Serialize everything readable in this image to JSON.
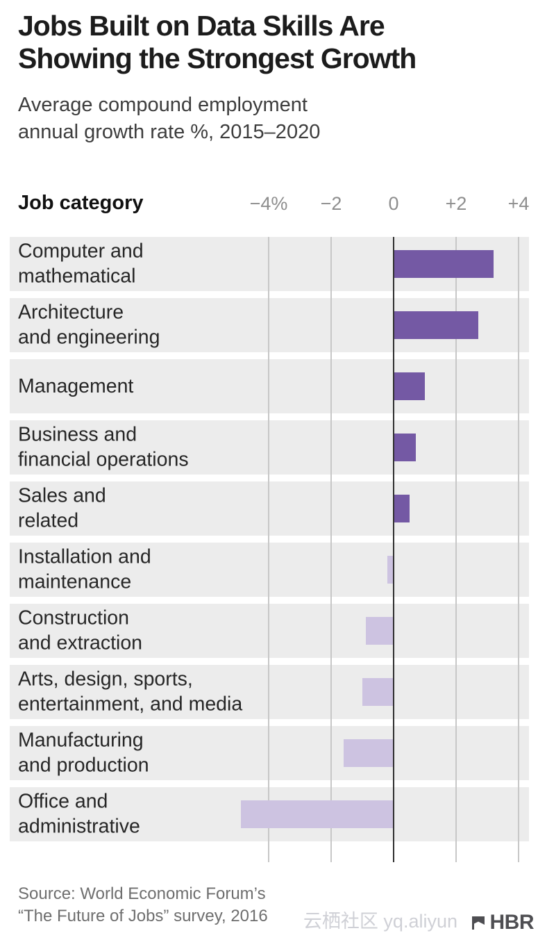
{
  "title_lines": [
    "Jobs Built on Data Skills Are",
    "Showing the Strongest Growth"
  ],
  "subtitle_lines": [
    "Average compound employment",
    "annual growth rate %, 2015–2020"
  ],
  "chart_data": {
    "type": "bar",
    "orientation": "horizontal",
    "title": "Jobs Built on Data Skills Are Showing the Strongest Growth",
    "subtitle": "Average compound employment annual growth rate %, 2015–2020",
    "column_header": "Job category",
    "x_axis": {
      "ticks": [
        {
          "label": "−4%",
          "value": -4
        },
        {
          "label": "−2",
          "value": -2
        },
        {
          "label": "0",
          "value": 0
        },
        {
          "label": "+2",
          "value": 2
        },
        {
          "label": "+4",
          "value": 4
        }
      ],
      "xlim": [
        -5.3,
        4.3
      ],
      "unit": "percent"
    },
    "grid": true,
    "legend": false,
    "categories": [
      "Computer and mathematical",
      "Architecture and engineering",
      "Management",
      "Business and financial operations",
      "Sales and related",
      "Installation and maintenance",
      "Construction and extraction",
      "Arts, design, sports, entertainment, and media",
      "Manufacturing and production",
      "Office and administrative"
    ],
    "category_lines": [
      [
        "Computer and",
        "mathematical"
      ],
      [
        "Architecture",
        "and engineering"
      ],
      [
        "Management"
      ],
      [
        "Business and",
        "financial operations"
      ],
      [
        "Sales and",
        "related"
      ],
      [
        "Installation and",
        "maintenance"
      ],
      [
        "Construction",
        "and extraction"
      ],
      [
        "Arts, design, sports,",
        "entertainment, and media"
      ],
      [
        "Manufacturing",
        "and production"
      ],
      [
        "Office and",
        "administrative"
      ]
    ],
    "values": [
      3.2,
      2.7,
      1.0,
      0.7,
      0.5,
      -0.2,
      -0.9,
      -1.0,
      -1.6,
      -4.9
    ],
    "colors": {
      "positive": "#7459a4",
      "negative": "#cdc3e1",
      "row_band": "#ececec",
      "gridline": "#c7c7c7",
      "zero_line": "#2f2f2f"
    }
  },
  "source_lines": [
    "Source: World Economic Forum’s",
    "“The Future of Jobs” survey, 2016"
  ],
  "watermark_text": "云栖社区 yq.aliyun",
  "brand": "HBR"
}
